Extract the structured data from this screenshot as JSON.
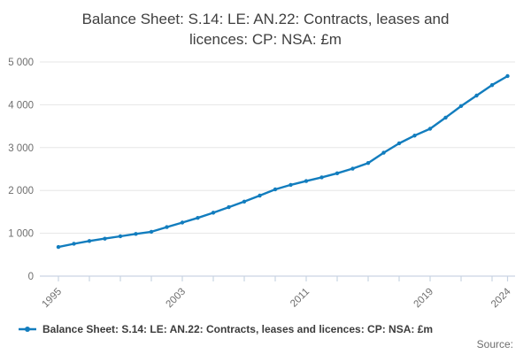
{
  "header": {
    "title_lines": [
      "Balance Sheet: S.14: LE: AN.22: Contracts, leases and",
      "licences: CP: NSA: £m"
    ],
    "title_full": "Balance Sheet: S.14: LE: AN.22: Contracts, leases and licences: CP: NSA: £m"
  },
  "legend": {
    "marker": "line-dot",
    "label": "Balance Sheet: S.14: LE: AN.22: Contracts, leases and licences: CP: NSA: £m"
  },
  "footer": {
    "source_label": "Source:"
  },
  "colors": {
    "series": "#127DBE",
    "grid": "#E6E6E6",
    "axis": "#C9D4E3",
    "tick_text": "#6E6E6E",
    "title_text": "#3F3F3F",
    "legend_text": "#3C3C3C",
    "background": "#FFFFFF"
  },
  "chart_data": {
    "type": "line",
    "title": "Balance Sheet: S.14: LE: AN.22: Contracts, leases and licences: CP: NSA: £m",
    "xlabel": "",
    "ylabel": "",
    "x": [
      1995,
      1996,
      1997,
      1998,
      1999,
      2000,
      2001,
      2002,
      2003,
      2004,
      2005,
      2006,
      2007,
      2008,
      2009,
      2010,
      2011,
      2012,
      2013,
      2014,
      2015,
      2016,
      2017,
      2018,
      2019,
      2020,
      2021,
      2022,
      2023,
      2024
    ],
    "series": [
      {
        "name": "Balance Sheet: S.14: LE: AN.22: Contracts, leases and licences: CP: NSA: £m",
        "values": [
          680,
          755,
          820,
          875,
          930,
          985,
          1035,
          1145,
          1250,
          1360,
          1480,
          1610,
          1740,
          1880,
          2025,
          2130,
          2220,
          2305,
          2400,
          2510,
          2640,
          2880,
          3100,
          3280,
          3440,
          3700,
          3970,
          4215,
          4460,
          4670
        ]
      }
    ],
    "ylim": [
      0,
      5000
    ],
    "yticks": [
      0,
      1000,
      2000,
      3000,
      4000,
      5000
    ],
    "ytick_labels": [
      "0",
      "1 000",
      "2 000",
      "3 000",
      "4 000",
      "5 000"
    ],
    "xticks_minor": [
      1995,
      1997,
      1999,
      2001,
      2003,
      2005,
      2007,
      2009,
      2011,
      2013,
      2015,
      2017,
      2019,
      2021,
      2023,
      2024
    ],
    "xticks_labeled": [
      "1995",
      "2003",
      "2011",
      "2019",
      "2024"
    ],
    "xticks_labeled_years": [
      1995,
      2003,
      2011,
      2019,
      2024
    ],
    "grid": "horizontal-only",
    "legend_position": "bottom-left",
    "marker": "circle"
  }
}
